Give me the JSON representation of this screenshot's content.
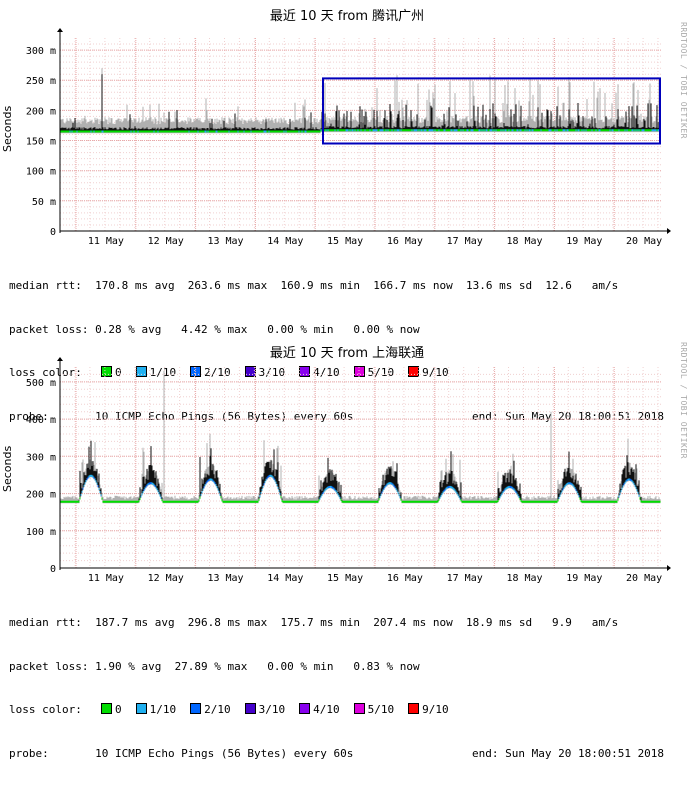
{
  "colors": {
    "green": "#00dd00",
    "c1": "#20b0f0",
    "c2": "#0066ff",
    "c3": "#4400cc",
    "c4": "#8800ee",
    "c5": "#dd00dd",
    "c9": "#ff0000",
    "box": "#0000bb",
    "grid": "#e8a8a8",
    "gray": "#b0b0b0"
  },
  "watermark": "RRDTOOL / TOBI OETIKER",
  "charts": [
    {
      "title": "最近 10 天 from 腾讯广州",
      "ylabel": "Seconds",
      "x_ticks": [
        "11 May",
        "12 May",
        "13 May",
        "14 May",
        "15 May",
        "16 May",
        "17 May",
        "18 May",
        "19 May",
        "20 May"
      ],
      "y_ticks": [
        "0",
        "50 m",
        "100 m",
        "150 m",
        "200 m",
        "250 m",
        "300 m"
      ],
      "median_rtt": "median rtt:  170.8 ms avg  263.6 ms max  160.9 ms min  166.7 ms now  13.6 ms sd  12.6   am/s",
      "packet_loss": "packet loss: 0.28 % avg   4.42 % max   0.00 % min   0.00 % now",
      "probe": "probe:       10 ICMP Echo Pings (56 Bytes) every 60s",
      "end": "end: Sun May 20 18:00:51 2018"
    },
    {
      "title": "最近 10 天 from 上海联通",
      "ylabel": "Seconds",
      "x_ticks": [
        "11 May",
        "12 May",
        "13 May",
        "14 May",
        "15 May",
        "16 May",
        "17 May",
        "18 May",
        "19 May",
        "20 May"
      ],
      "y_ticks": [
        "0",
        "100 m",
        "200 m",
        "300 m",
        "400 m",
        "500 m"
      ],
      "median_rtt": "median rtt:  187.7 ms avg  296.8 ms max  175.7 ms min  207.4 ms now  18.9 ms sd   9.9   am/s",
      "packet_loss": "packet loss: 1.90 % avg  27.89 % max   0.00 % min   0.83 % now",
      "probe": "probe:       10 ICMP Echo Pings (56 Bytes) every 60s",
      "end": "end: Sun May 20 18:00:51 2018"
    }
  ],
  "loss_color": {
    "label": "loss color:",
    "items": [
      {
        "label": "0",
        "color": "#00dd00"
      },
      {
        "label": "1/10",
        "color": "#20b0f0"
      },
      {
        "label": "2/10",
        "color": "#0066ff"
      },
      {
        "label": "3/10",
        "color": "#4400cc"
      },
      {
        "label": "4/10",
        "color": "#8800ee"
      },
      {
        "label": "5/10",
        "color": "#dd00dd"
      },
      {
        "label": "9/10",
        "color": "#ff0000"
      }
    ]
  },
  "chart_data": [
    {
      "type": "area",
      "title": "最近 10 天 from 腾讯广州",
      "ylabel": "Seconds",
      "x_range": [
        "10 May",
        "20 May 18:00"
      ],
      "categories": [
        "11 May",
        "12 May",
        "13 May",
        "14 May",
        "15 May",
        "16 May",
        "17 May",
        "18 May",
        "19 May",
        "20 May"
      ],
      "ylim": [
        0,
        0.32
      ],
      "y_ticks": [
        0,
        0.05,
        0.1,
        0.15,
        0.2,
        0.25,
        0.3
      ],
      "series": [
        {
          "name": "median rtt",
          "avg": 0.1708,
          "max": 0.2636,
          "min": 0.1609,
          "now": 0.1667
        },
        {
          "name": "packet loss",
          "avg": 0.28,
          "max": 4.42,
          "min": 0.0,
          "now": 0.0
        }
      ],
      "annotations": [
        "highlight box 15 May – 20 May, 145 m – 253 m"
      ]
    },
    {
      "type": "area",
      "title": "最近 10 天 from 上海联通",
      "ylabel": "Seconds",
      "x_range": [
        "10 May",
        "20 May 18:00"
      ],
      "categories": [
        "11 May",
        "12 May",
        "13 May",
        "14 May",
        "15 May",
        "16 May",
        "17 May",
        "18 May",
        "19 May",
        "20 May"
      ],
      "ylim": [
        0,
        0.54
      ],
      "y_ticks": [
        0,
        0.1,
        0.2,
        0.3,
        0.4,
        0.5
      ],
      "series": [
        {
          "name": "median rtt",
          "avg": 0.1877,
          "max": 0.2968,
          "min": 0.1757,
          "now": 0.2074
        },
        {
          "name": "packet loss",
          "avg": 1.9,
          "max": 27.89,
          "min": 0.0,
          "now": 0.83
        }
      ]
    }
  ]
}
